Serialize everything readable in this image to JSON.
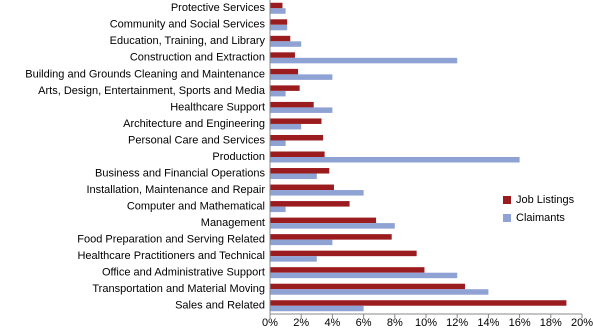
{
  "chart_data": {
    "type": "hbar",
    "categories": [
      "Protective Services",
      "Community and Social Services",
      "Education, Training, and Library",
      "Construction and Extraction",
      "Building and Grounds Cleaning and Maintenance",
      "Arts, Design, Entertainment, Sports and Media",
      "Healthcare Support",
      "Architecture and Engineering",
      "Personal Care and Services",
      "Production",
      "Business and Financial Operations",
      "Installation, Maintenance and Repair",
      "Computer and Mathematical",
      "Management",
      "Food Preparation and Serving Related",
      "Healthcare Practitioners and Technical",
      "Office and Administrative Support",
      "Transportation and Material Moving",
      "Sales and Related"
    ],
    "series": [
      {
        "name": "Job Listings",
        "color": "#9b1c1f",
        "values": [
          0.8,
          1.1,
          1.3,
          1.6,
          1.8,
          1.9,
          2.8,
          3.3,
          3.4,
          3.5,
          3.8,
          4.1,
          5.1,
          6.8,
          7.8,
          9.4,
          9.9,
          12.5,
          19.0
        ]
      },
      {
        "name": "Claimants",
        "color": "#8fa2d4",
        "values": [
          1.0,
          1.1,
          2.0,
          12.0,
          4.0,
          1.0,
          4.0,
          2.0,
          1.0,
          16.0,
          3.0,
          6.0,
          1.0,
          8.0,
          4.0,
          3.0,
          12.0,
          14.0,
          6.0
        ]
      }
    ],
    "xlim": [
      0,
      20
    ],
    "xticks": [
      {
        "value": 0,
        "label": "0%"
      },
      {
        "value": 2,
        "label": "2%"
      },
      {
        "value": 4,
        "label": "4%"
      },
      {
        "value": 6,
        "label": "6%"
      },
      {
        "value": 8,
        "label": "8%"
      },
      {
        "value": 10,
        "label": "10%"
      },
      {
        "value": 12,
        "label": "12%"
      },
      {
        "value": 14,
        "label": "14%"
      },
      {
        "value": 16,
        "label": "16%"
      },
      {
        "value": 18,
        "label": "18%"
      },
      {
        "value": 20,
        "label": "20%"
      }
    ],
    "legend": "right"
  }
}
